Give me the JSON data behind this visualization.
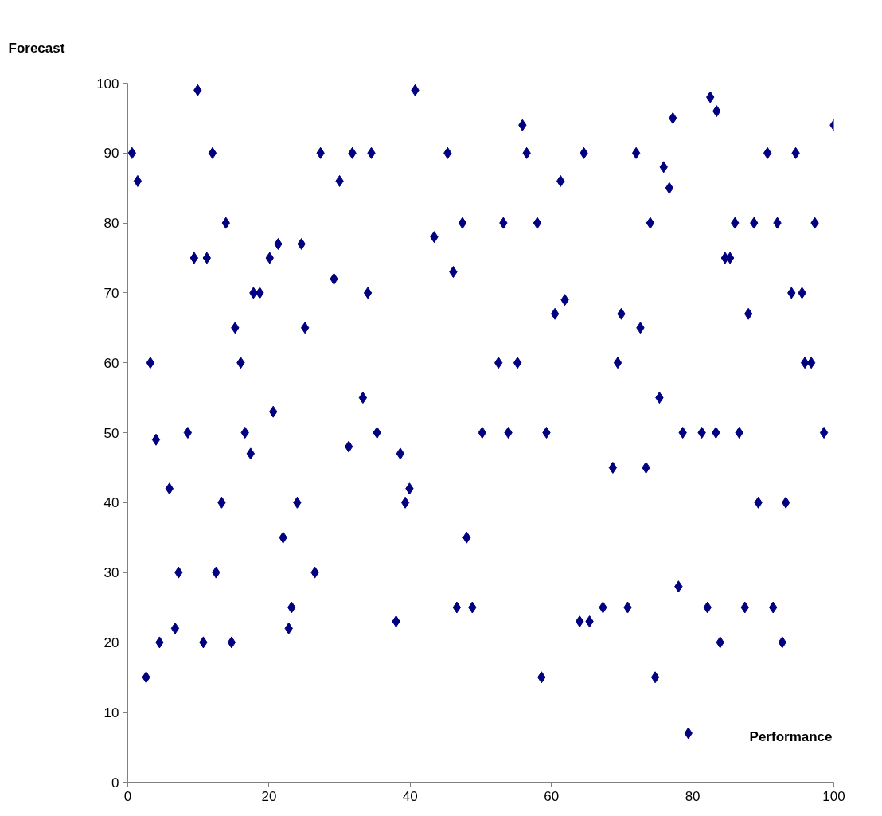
{
  "chart_data": {
    "type": "scatter",
    "xlabel": "Performance",
    "ylabel": "Forecast",
    "xlim": [
      0,
      100
    ],
    "ylim": [
      0,
      100
    ],
    "xticks": [
      0,
      20,
      40,
      60,
      80,
      100
    ],
    "yticks": [
      0,
      10,
      20,
      30,
      40,
      50,
      60,
      70,
      80,
      90,
      100
    ],
    "grid": false,
    "marker": "diamond",
    "series": [
      {
        "color": "#000080",
        "x": [
          0.6,
          1.4,
          2.6,
          3.2,
          4.0,
          4.5,
          5.9,
          6.7,
          7.2,
          8.5,
          9.4,
          9.9,
          10.7,
          11.2,
          12.0,
          12.5,
          13.3,
          13.9,
          14.7,
          15.2,
          16.0,
          16.6,
          17.4,
          17.8,
          18.7,
          20.1,
          20.6,
          21.3,
          22.0,
          22.8,
          23.2,
          24.0,
          24.6,
          25.1,
          26.5,
          27.3,
          29.2,
          30.0,
          31.3,
          31.8,
          33.3,
          34.0,
          34.5,
          35.3,
          38.0,
          38.6,
          39.3,
          39.9,
          40.7,
          43.4,
          45.3,
          46.1,
          46.6,
          47.4,
          48.0,
          48.8,
          50.2,
          52.5,
          53.2,
          53.9,
          55.2,
          55.9,
          56.5,
          58.0,
          58.6,
          59.3,
          60.5,
          61.3,
          61.9,
          64.0,
          64.6,
          65.4,
          67.3,
          68.7,
          69.4,
          69.9,
          70.8,
          72.0,
          72.6,
          73.4,
          74.0,
          74.7,
          75.3,
          75.9,
          76.7,
          77.2,
          78.0,
          78.6,
          79.4,
          81.3,
          82.1,
          82.5,
          83.3,
          83.4,
          83.9,
          84.6,
          85.3,
          86.0,
          86.6,
          87.4,
          87.9,
          88.7,
          89.3,
          90.6,
          91.4,
          92.0,
          92.7,
          93.2,
          94.0,
          94.6,
          95.5,
          95.9,
          96.8,
          97.3,
          98.6,
          100
        ],
        "values": [
          90,
          86,
          15,
          60,
          49,
          20,
          42,
          22,
          30,
          50,
          75,
          99,
          20,
          75,
          90,
          30,
          40,
          80,
          20,
          65,
          60,
          50,
          47,
          70,
          70,
          75,
          53,
          77,
          35,
          22,
          25,
          40,
          77,
          65,
          30,
          90,
          72,
          86,
          48,
          90,
          55,
          70,
          90,
          50,
          23,
          47,
          40,
          42,
          99,
          78,
          90,
          73,
          25,
          80,
          35,
          25,
          50,
          60,
          80,
          50,
          60,
          94,
          90,
          80,
          15,
          50,
          67,
          86,
          69,
          23,
          90,
          23,
          25,
          45,
          60,
          67,
          25,
          90,
          65,
          45,
          80,
          15,
          55,
          88,
          85,
          95,
          28,
          50,
          7,
          50,
          25,
          98,
          50,
          96,
          20,
          75,
          75,
          80,
          50,
          25,
          67,
          80,
          40,
          90,
          25,
          80,
          20,
          40,
          70,
          90,
          70,
          60,
          60,
          80,
          50,
          94
        ]
      }
    ]
  }
}
